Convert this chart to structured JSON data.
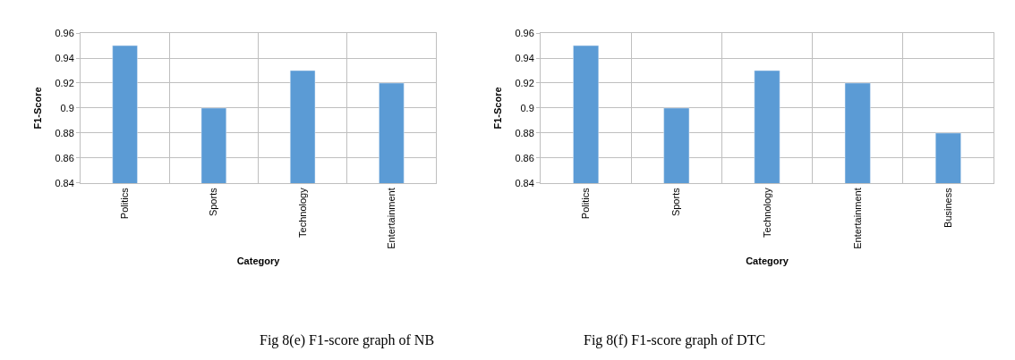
{
  "chart_data": [
    {
      "type": "bar",
      "xlabel": "Category",
      "ylabel": "F1-Score",
      "categories": [
        "Politics",
        "Sports",
        "Technology",
        "Entertainment"
      ],
      "values": [
        0.95,
        0.9,
        0.93,
        0.92
      ],
      "color": "#5b9bd5",
      "ylim": [
        0.84,
        0.96
      ],
      "yticks": [
        {
          "value": 0.84,
          "label": "0.84"
        },
        {
          "value": 0.86,
          "label": "0.86"
        },
        {
          "value": 0.88,
          "label": "0.88"
        },
        {
          "value": 0.9,
          "label": "0.9"
        },
        {
          "value": 0.92,
          "label": "0.92"
        },
        {
          "value": 0.94,
          "label": "0.94"
        },
        {
          "value": 0.96,
          "label": "0.96"
        }
      ],
      "grid": true,
      "annotations": [
        "Fig 8(e) F1-score graph of NB"
      ]
    },
    {
      "type": "bar",
      "xlabel": "Category",
      "ylabel": "F1-Score",
      "categories": [
        "Politics",
        "Sports",
        "Technology",
        "Entertainment",
        "Business"
      ],
      "values": [
        0.95,
        0.9,
        0.93,
        0.92,
        0.88
      ],
      "color": "#5b9bd5",
      "ylim": [
        0.84,
        0.96
      ],
      "yticks": [
        {
          "value": 0.84,
          "label": "0.84"
        },
        {
          "value": 0.86,
          "label": "0.86"
        },
        {
          "value": 0.88,
          "label": "0.88"
        },
        {
          "value": 0.9,
          "label": "0.9"
        },
        {
          "value": 0.92,
          "label": "0.92"
        },
        {
          "value": 0.94,
          "label": "0.94"
        },
        {
          "value": 0.96,
          "label": "0.96"
        }
      ],
      "grid": true,
      "annotations": [
        "Fig 8(f) F1-score graph of DTC"
      ]
    }
  ]
}
